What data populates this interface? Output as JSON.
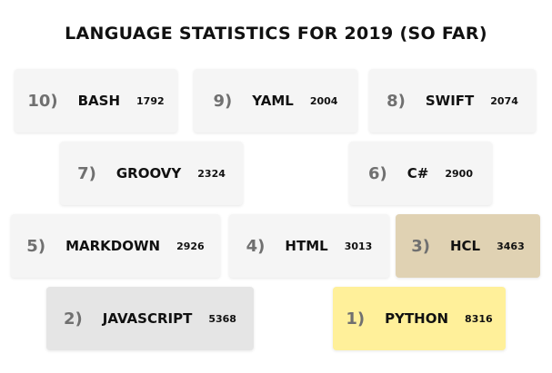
{
  "title": "LANGUAGE STATISTICS FOR 2019 (SO FAR)",
  "colors": {
    "default_card": "#f5f5f5",
    "javascript_card": "#e5e5e5",
    "hcl_card": "#e0d2b3",
    "python_card": "#fff09a"
  },
  "cards": [
    {
      "rank": "10)",
      "language": "BASH",
      "count": "1792"
    },
    {
      "rank": "9)",
      "language": "YAML",
      "count": "2004"
    },
    {
      "rank": "8)",
      "language": "SWIFT",
      "count": "2074"
    },
    {
      "rank": "7)",
      "language": "GROOVY",
      "count": "2324"
    },
    {
      "rank": "6)",
      "language": "C#",
      "count": "2900"
    },
    {
      "rank": "5)",
      "language": "MARKDOWN",
      "count": "2926"
    },
    {
      "rank": "4)",
      "language": "HTML",
      "count": "3013"
    },
    {
      "rank": "3)",
      "language": "HCL",
      "count": "3463"
    },
    {
      "rank": "2)",
      "language": "JAVASCRIPT",
      "count": "5368"
    },
    {
      "rank": "1)",
      "language": "PYTHON",
      "count": "8316"
    }
  ]
}
